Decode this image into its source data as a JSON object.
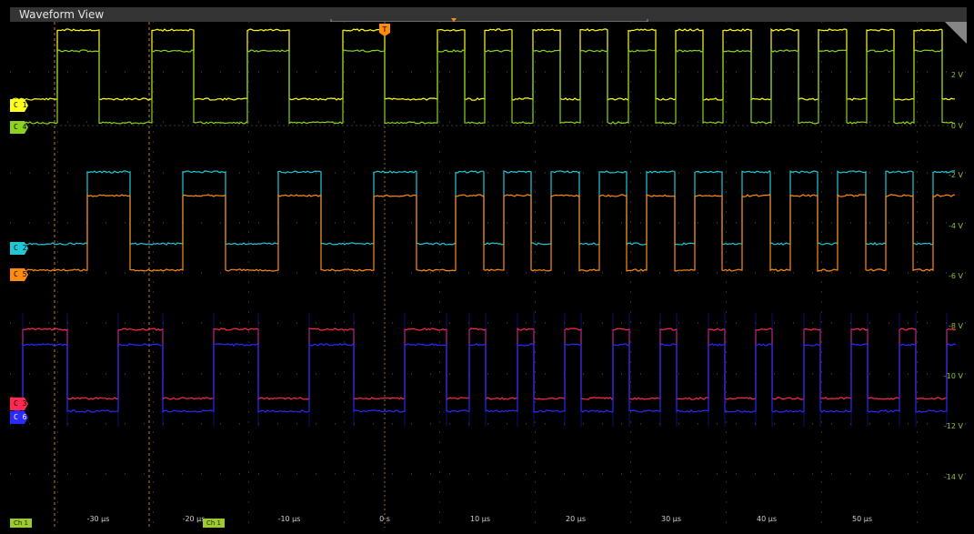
{
  "panel": {
    "title": "Waveform View"
  },
  "channels": [
    {
      "id": "C1",
      "label": "C 1",
      "color": "#ffff1e"
    },
    {
      "id": "C4",
      "label": "C 4",
      "color": "#8cd21e"
    },
    {
      "id": "C2",
      "label": "C 2",
      "color": "#20c8d6"
    },
    {
      "id": "C5",
      "label": "C 5",
      "color": "#ff8c10"
    },
    {
      "id": "C3",
      "label": "C 3",
      "color": "#ff2850"
    },
    {
      "id": "C6",
      "label": "C 6",
      "color": "#2a2aff"
    }
  ],
  "voltage_labels": [
    "2 V",
    "0 V",
    "-2 V",
    "-4 V",
    "-6 V",
    "-8 V",
    "-10 V",
    "-12 V",
    "-14 V"
  ],
  "time_labels": [
    "-30 µs",
    "-20 µs",
    "-10 µs",
    "0 s",
    "10 µs",
    "20 µs",
    "30 µs",
    "40 µs",
    "50 µs"
  ],
  "trigger_marker": "T",
  "cursor_readouts": [
    "Ch 1",
    "Ch 1"
  ],
  "colors": {
    "background": "#000000",
    "titlebar": "#343434",
    "grid": "#3a3a3a",
    "voltage_axis": "#8cc43c",
    "trigger": "#ff8c10"
  }
}
